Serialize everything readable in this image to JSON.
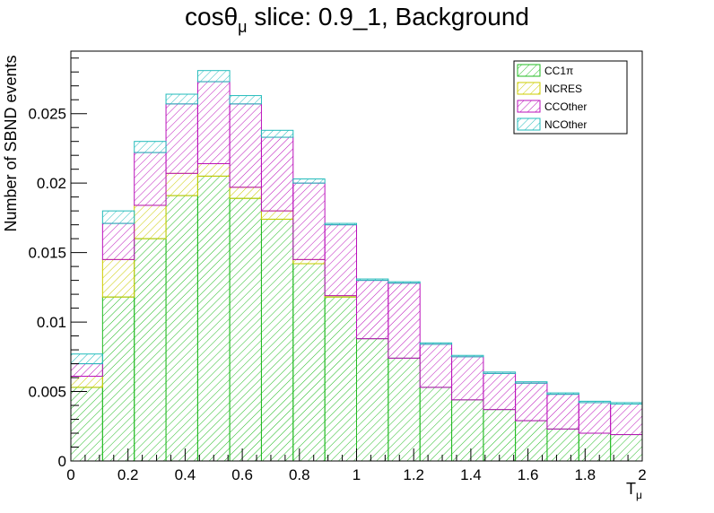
{
  "chart_data": {
    "type": "bar",
    "stacked": true,
    "title": {
      "prefix": "cosθ",
      "subscript": "μ",
      "suffix": " slice: 0.9_1, Background"
    },
    "xlabel": {
      "base": "T",
      "subscript": "μ"
    },
    "ylabel": "Number of SBND events",
    "xlim": [
      0,
      2
    ],
    "ylim": [
      0,
      0.0295
    ],
    "x_ticks": [
      "0",
      "0.2",
      "0.4",
      "0.6",
      "0.8",
      "1",
      "1.2",
      "1.4",
      "1.6",
      "1.8",
      "2"
    ],
    "x_tick_values": [
      0,
      0.2,
      0.4,
      0.6,
      0.8,
      1.0,
      1.2,
      1.4,
      1.6,
      1.8,
      2.0
    ],
    "y_ticks": [
      "0",
      "0.005",
      "0.01",
      "0.015",
      "0.02",
      "0.025"
    ],
    "y_tick_values": [
      0,
      0.005,
      0.01,
      0.015,
      0.02,
      0.025
    ],
    "bin_edges": [
      0,
      0.111,
      0.222,
      0.333,
      0.444,
      0.556,
      0.667,
      0.778,
      0.889,
      1.0,
      1.111,
      1.222,
      1.333,
      1.444,
      1.556,
      1.667,
      1.778,
      1.889,
      2.0
    ],
    "legend_position": "top-right",
    "series": [
      {
        "name": "CC1π",
        "color": "#22bb22",
        "values": [
          0.0053,
          0.0118,
          0.016,
          0.0191,
          0.0205,
          0.0189,
          0.0174,
          0.0142,
          0.0118,
          0.0088,
          0.0074,
          0.0053,
          0.0044,
          0.0037,
          0.0029,
          0.0023,
          0.002,
          0.0019
        ]
      },
      {
        "name": "NCRES",
        "color": "#cccc00",
        "values": [
          0.0008,
          0.0027,
          0.0024,
          0.0016,
          0.0009,
          0.0008,
          0.0006,
          0.0003,
          0.0001,
          0.0,
          0.0,
          0.0,
          0.0,
          0.0,
          0.0,
          0.0,
          0.0,
          0.0
        ]
      },
      {
        "name": "CCOther",
        "color": "#bb11bb",
        "values": [
          0.0009,
          0.0026,
          0.0038,
          0.005,
          0.0059,
          0.006,
          0.0053,
          0.0055,
          0.0051,
          0.0042,
          0.0054,
          0.0031,
          0.0031,
          0.0026,
          0.0027,
          0.0025,
          0.0022,
          0.0022
        ]
      },
      {
        "name": "NCOther",
        "color": "#22bbbb",
        "values": [
          0.0007,
          0.0009,
          0.0008,
          0.0007,
          0.0008,
          0.0006,
          0.0005,
          0.0003,
          0.0001,
          0.0001,
          0.0001,
          0.0001,
          0.0001,
          0.0001,
          0.0001,
          0.0001,
          0.0001,
          0.0001
        ]
      }
    ]
  }
}
